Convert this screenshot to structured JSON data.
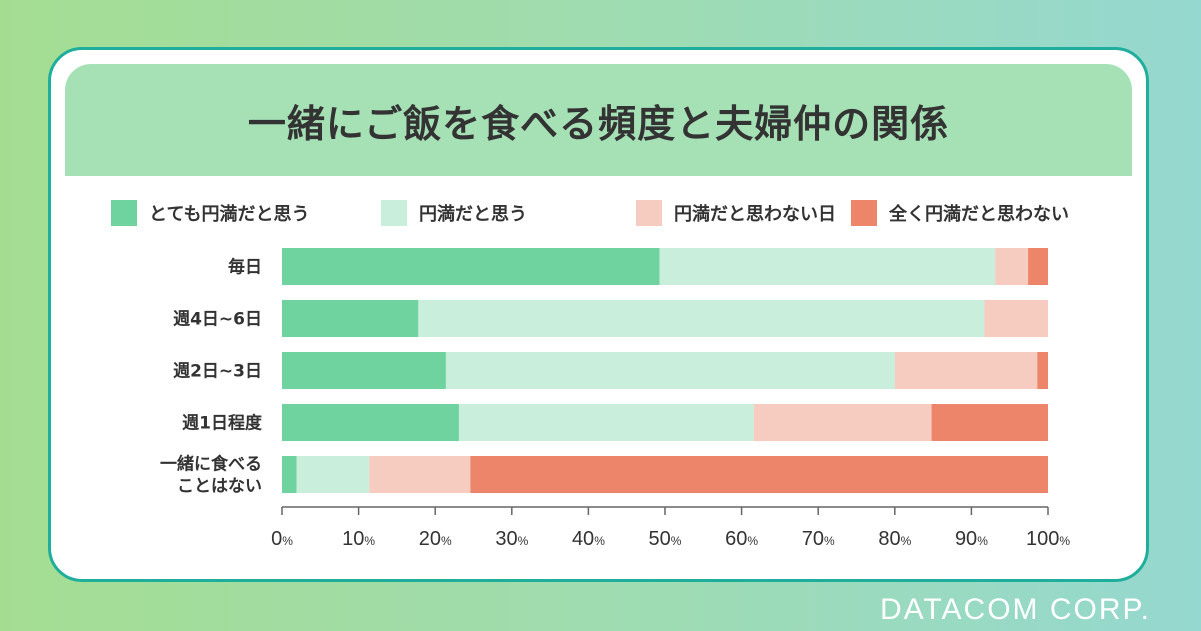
{
  "title": "一緒にご飯を食べる頻度と夫婦仲の関係",
  "brand": "DATACOM CORP.",
  "chart_data": {
    "type": "bar",
    "orientation": "horizontal",
    "stacked": true,
    "categories": [
      "毎日",
      "週4日~6日",
      "週2日~3日",
      "週1日程度",
      "一緒に食べる\nことはない"
    ],
    "series": [
      {
        "name": "とても円満だと思う",
        "color": "#6fd39f",
        "values": [
          49.3,
          17.8,
          21.4,
          23.1,
          1.9
        ]
      },
      {
        "name": "円満だと思う",
        "color": "#c9eedb",
        "values": [
          43.8,
          73.9,
          58.6,
          38.5,
          9.5
        ]
      },
      {
        "name": "円満だと思わない日",
        "color": "#f6cbc0",
        "values": [
          4.3,
          8.3,
          18.6,
          23.2,
          13.2
        ]
      },
      {
        "name": "全く円満だと思わない",
        "color": "#ec8569",
        "values": [
          2.6,
          0,
          1.4,
          15.2,
          75.4
        ]
      }
    ],
    "xlim": [
      0,
      100
    ],
    "xticks": [
      "0",
      "10",
      "20",
      "30",
      "40",
      "50",
      "60",
      "70",
      "80",
      "90",
      "100"
    ],
    "tick_unit": "%",
    "grid": false,
    "legend": "top"
  }
}
